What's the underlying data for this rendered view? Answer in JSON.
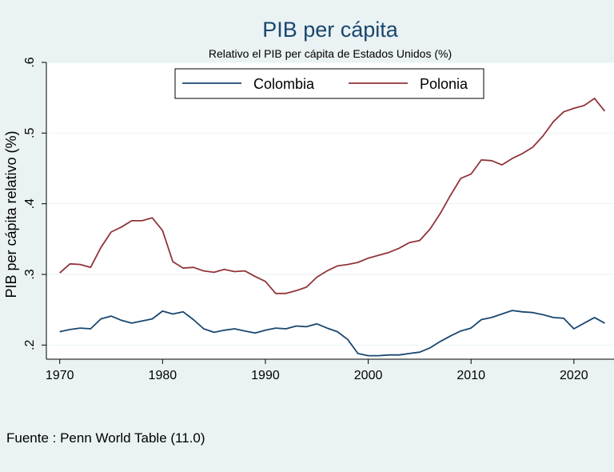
{
  "chart_data": {
    "type": "line",
    "title": "PIB per cápita",
    "subtitle": "Relativo el PIB per cápita de Estados Unidos (%)",
    "xlabel": "",
    "ylabel": "PIB per cápita relativo (%)",
    "xlim": [
      1970,
      2023
    ],
    "ylim": [
      0.18,
      0.6
    ],
    "x_ticks": [
      1970,
      1980,
      1990,
      2000,
      2010,
      2020
    ],
    "x_tick_labels": [
      "1970",
      "1980",
      "1990",
      "2000",
      "2010",
      "2020"
    ],
    "y_ticks": [
      0.2,
      0.3,
      0.4,
      0.5,
      0.6
    ],
    "y_tick_labels": [
      ".2",
      ".3",
      ".4",
      ".5",
      ".6"
    ],
    "grid": "horizontal",
    "legend_position": "top",
    "note": "Fuente : Penn World Table (11.0)",
    "x": [
      1970,
      1971,
      1972,
      1973,
      1974,
      1975,
      1976,
      1977,
      1978,
      1979,
      1980,
      1981,
      1982,
      1983,
      1984,
      1985,
      1986,
      1987,
      1988,
      1989,
      1990,
      1991,
      1992,
      1993,
      1994,
      1995,
      1996,
      1997,
      1998,
      1999,
      2000,
      2001,
      2002,
      2003,
      2004,
      2005,
      2006,
      2007,
      2008,
      2009,
      2010,
      2011,
      2012,
      2013,
      2014,
      2015,
      2016,
      2017,
      2018,
      2019,
      2020,
      2021,
      2022,
      2023
    ],
    "series": [
      {
        "name": "Colombia",
        "color": "#1a476f",
        "values": [
          0.219,
          0.222,
          0.224,
          0.223,
          0.237,
          0.241,
          0.235,
          0.231,
          0.234,
          0.237,
          0.248,
          0.244,
          0.247,
          0.236,
          0.223,
          0.218,
          0.221,
          0.223,
          0.22,
          0.217,
          0.221,
          0.224,
          0.223,
          0.227,
          0.226,
          0.23,
          0.224,
          0.219,
          0.208,
          0.188,
          0.185,
          0.185,
          0.186,
          0.186,
          0.188,
          0.19,
          0.196,
          0.205,
          0.213,
          0.22,
          0.224,
          0.236,
          0.239,
          0.244,
          0.249,
          0.247,
          0.246,
          0.243,
          0.239,
          0.238,
          0.223,
          0.231,
          0.239,
          0.231
        ]
      },
      {
        "name": "Polonia",
        "color": "#90353b",
        "values": [
          0.302,
          0.315,
          0.314,
          0.31,
          0.338,
          0.36,
          0.367,
          0.376,
          0.376,
          0.38,
          0.362,
          0.318,
          0.309,
          0.31,
          0.305,
          0.303,
          0.307,
          0.304,
          0.305,
          0.297,
          0.29,
          0.273,
          0.273,
          0.277,
          0.282,
          0.296,
          0.305,
          0.312,
          0.314,
          0.317,
          0.323,
          0.327,
          0.331,
          0.337,
          0.345,
          0.348,
          0.364,
          0.386,
          0.412,
          0.436,
          0.442,
          0.462,
          0.461,
          0.455,
          0.464,
          0.471,
          0.48,
          0.496,
          0.516,
          0.53,
          0.535,
          0.539,
          0.549,
          0.531
        ]
      }
    ]
  }
}
